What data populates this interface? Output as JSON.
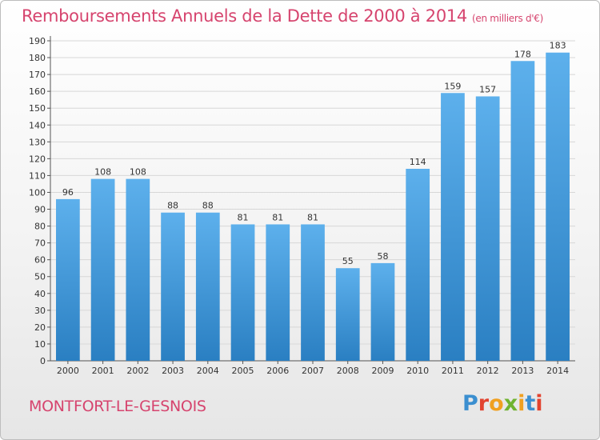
{
  "chart_data": {
    "type": "bar",
    "title": "Remboursements Annuels de la Dette de 2000 à 2014",
    "subtitle": "(en milliers d'€)",
    "categories": [
      "2000",
      "2001",
      "2002",
      "2003",
      "2004",
      "2005",
      "2006",
      "2007",
      "2008",
      "2009",
      "2010",
      "2011",
      "2012",
      "2013",
      "2014"
    ],
    "values": [
      96,
      108,
      108,
      88,
      88,
      81,
      81,
      81,
      55,
      58,
      114,
      159,
      157,
      178,
      183
    ],
    "ylim": [
      0,
      190
    ],
    "ytick_step": 10,
    "grid": true,
    "bar_color": "#3a95d6"
  },
  "footer": {
    "commune": "MONTFORT-LE-GESNOIS",
    "logo_letters": [
      "P",
      "r",
      "o",
      "x",
      "i",
      "t",
      "i"
    ],
    "logo_colors": [
      "#3b8fd0",
      "#e2432f",
      "#f0a020",
      "#6fb330",
      "#f0a020",
      "#3b8fd0",
      "#e2432f"
    ]
  }
}
